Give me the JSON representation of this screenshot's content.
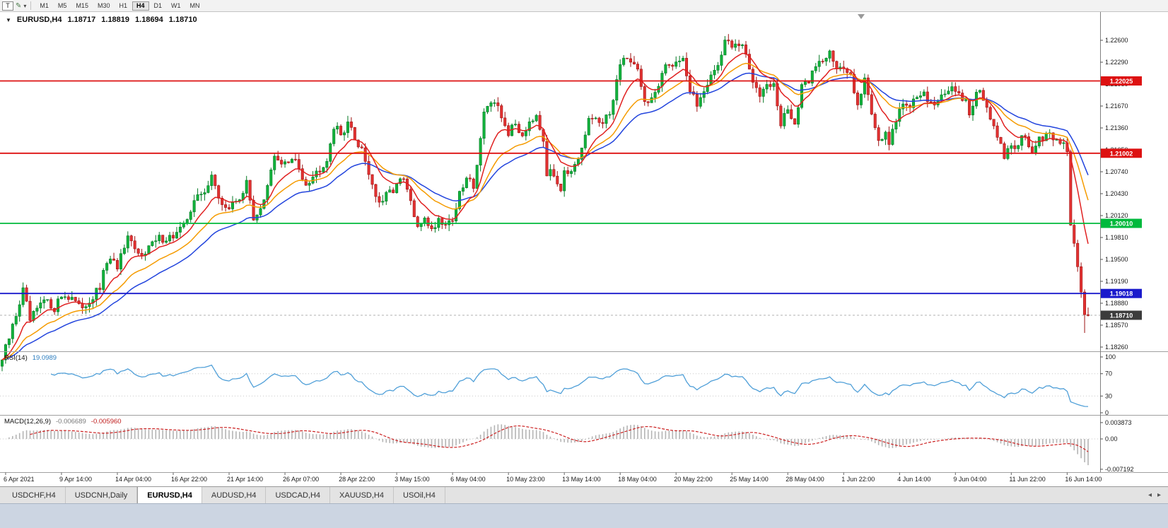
{
  "toolbar": {
    "t_button": "T",
    "pencil_tool": "✎",
    "dropdown_caret": "▾",
    "timeframes": [
      "M1",
      "M5",
      "M15",
      "M30",
      "H1",
      "H4",
      "D1",
      "W1",
      "MN"
    ],
    "active_timeframe": "H4"
  },
  "chart": {
    "dropdown_marker": "▼",
    "symbol_label": "EURUSD,H4",
    "ohlc": {
      "open": "1.18717",
      "high": "1.18819",
      "low": "1.18694",
      "close": "1.18710"
    },
    "price_axis": {
      "ticks": [
        "1.22600",
        "1.22290",
        "1.21980",
        "1.21670",
        "1.21360",
        "1.21050",
        "1.20740",
        "1.20430",
        "1.20120",
        "1.19810",
        "1.19500",
        "1.19190",
        "1.18880",
        "1.18570",
        "1.18260"
      ]
    },
    "hlines": [
      {
        "price": 1.22025,
        "label": "1.22025",
        "color": "#dd1111"
      },
      {
        "price": 1.21002,
        "label": "1.21002",
        "color": "#dd1111"
      },
      {
        "price": 1.2001,
        "label": "1.20010",
        "color": "#00b93c"
      },
      {
        "price": 1.19018,
        "label": "1.19018",
        "color": "#1a1acc"
      }
    ],
    "bid": {
      "price": 1.1871,
      "label": "1.18710",
      "box_color": "#3c3c3c"
    },
    "time_axis": [
      "6 Apr 2021",
      "9 Apr 14:00",
      "14 Apr 04:00",
      "16 Apr 22:00",
      "21 Apr 14:00",
      "26 Apr 07:00",
      "28 Apr 22:00",
      "3 May 15:00",
      "6 May 04:00",
      "10 May 23:00",
      "13 May 14:00",
      "18 May 04:00",
      "20 May 22:00",
      "25 May 14:00",
      "28 May 04:00",
      "1 Jun 22:00",
      "4 Jun 14:00",
      "9 Jun 04:00",
      "11 Jun 22:00",
      "16 Jun 14:00"
    ]
  },
  "indicators": {
    "rsi": {
      "name": "RSI(14)",
      "value": "19.0989",
      "levels": [
        "100",
        "70",
        "30",
        "0"
      ],
      "level_values": [
        100,
        70,
        30,
        0
      ],
      "line_color": "#4f9fd8"
    },
    "macd": {
      "name": "MACD(12,26,9)",
      "value_main": "-0.006689",
      "value_signal": "-0.005960",
      "axis": [
        "0.003873",
        "0.00",
        "-0.007192"
      ],
      "hist_color": "#b4b4b4",
      "signal_color": "#cc2222"
    }
  },
  "tabs": {
    "items": [
      "USDCHF,H4",
      "USDCNH,Daily",
      "EURUSD,H4",
      "AUDUSD,H4",
      "USDCAD,H4",
      "XAUUSD,H4",
      "USOil,H4"
    ],
    "active": "EURUSD,H4",
    "scroll_left": "◂",
    "scroll_right": "▸"
  },
  "chart_data": {
    "type": "candlestick",
    "symbol": "EURUSD",
    "timeframe": "H4",
    "visible_range": {
      "price_min": 1.182,
      "price_max": 1.2297,
      "bars": 312
    },
    "last_candle": {
      "open": 1.18717,
      "high": 1.18819,
      "low": 1.18694,
      "close": 1.1871
    },
    "indicator_values": {
      "rsi": 19.0989,
      "macd": -0.006689,
      "macd_signal": -0.00596
    },
    "levels": [
      1.22025,
      1.21002,
      1.2001,
      1.19018
    ],
    "ma_periods": {
      "fast": 10,
      "medium": 21,
      "slow": 34
    },
    "ma_colors": {
      "fast": "#e02020",
      "medium": "#f59b00",
      "slow": "#2244dd"
    },
    "candle_colors": {
      "bull_fill": "#12b33c",
      "bull_stroke": "#067a26",
      "bear_fill": "#e33232",
      "bear_stroke": "#9e1111"
    },
    "wick_overrides": [
      {
        "bar": 207,
        "high": 1.2266
      },
      {
        "bar": 310,
        "low": 1.1846
      }
    ],
    "waypoints": [
      [
        0,
        1.1808
      ],
      [
        2,
        1.1838
      ],
      [
        4,
        1.1872
      ],
      [
        6,
        1.1906
      ],
      [
        8,
        1.1863
      ],
      [
        10,
        1.1878
      ],
      [
        12,
        1.1891
      ],
      [
        15,
        1.1882
      ],
      [
        17,
        1.1899
      ],
      [
        20,
        1.1897
      ],
      [
        22,
        1.1881
      ],
      [
        25,
        1.1891
      ],
      [
        28,
        1.1909
      ],
      [
        30,
        1.1948
      ],
      [
        33,
        1.1941
      ],
      [
        36,
        1.1977
      ],
      [
        39,
        1.1956
      ],
      [
        42,
        1.1968
      ],
      [
        45,
        1.1979
      ],
      [
        49,
        1.1983
      ],
      [
        52,
        1.1996
      ],
      [
        55,
        1.2035
      ],
      [
        58,
        1.2043
      ],
      [
        60,
        1.2074
      ],
      [
        62,
        1.2032
      ],
      [
        65,
        1.2022
      ],
      [
        68,
        1.2039
      ],
      [
        70,
        1.2056
      ],
      [
        72,
        1.2009
      ],
      [
        75,
        1.2031
      ],
      [
        78,
        1.2094
      ],
      [
        81,
        1.2086
      ],
      [
        84,
        1.2089
      ],
      [
        87,
        1.2059
      ],
      [
        90,
        1.2073
      ],
      [
        93,
        1.2093
      ],
      [
        95,
        1.2139
      ],
      [
        97,
        1.2126
      ],
      [
        99,
        1.2145
      ],
      [
        101,
        1.2119
      ],
      [
        103,
        1.2108
      ],
      [
        106,
        1.2056
      ],
      [
        108,
        1.2026
      ],
      [
        110,
        1.2039
      ],
      [
        113,
        1.2056
      ],
      [
        115,
        1.2062
      ],
      [
        117,
        1.2031
      ],
      [
        119,
        1.1991
      ],
      [
        121,
        1.2012
      ],
      [
        123,
        1.1991
      ],
      [
        125,
        1.2008
      ],
      [
        127,
        1.2001
      ],
      [
        129,
        1.2007
      ],
      [
        131,
        1.2041
      ],
      [
        133,
        1.2064
      ],
      [
        135,
        1.2056
      ],
      [
        137,
        1.2119
      ],
      [
        138,
        1.2164
      ],
      [
        140,
        1.2171
      ],
      [
        142,
        1.2161
      ],
      [
        145,
        1.2129
      ],
      [
        147,
        1.2141
      ],
      [
        149,
        1.2126
      ],
      [
        151,
        1.2147
      ],
      [
        153,
        1.2157
      ],
      [
        155,
        1.2121
      ],
      [
        156,
        1.2073
      ],
      [
        158,
        1.2069
      ],
      [
        160,
        1.2053
      ],
      [
        161,
        1.2079
      ],
      [
        163,
        1.2071
      ],
      [
        165,
        1.2086
      ],
      [
        167,
        1.2124
      ],
      [
        168,
        1.2147
      ],
      [
        170,
        1.2151
      ],
      [
        172,
        1.2139
      ],
      [
        174,
        1.2157
      ],
      [
        176,
        1.2204
      ],
      [
        178,
        1.2239
      ],
      [
        180,
        1.2229
      ],
      [
        182,
        1.2223
      ],
      [
        184,
        1.2171
      ],
      [
        186,
        1.2179
      ],
      [
        188,
        1.2191
      ],
      [
        190,
        1.2224
      ],
      [
        193,
        1.2231
      ],
      [
        195,
        1.2237
      ],
      [
        197,
        1.2186
      ],
      [
        199,
        1.2169
      ],
      [
        201,
        1.2191
      ],
      [
        203,
        1.2211
      ],
      [
        205,
        1.2224
      ],
      [
        207,
        1.2261
      ],
      [
        209,
        1.2249
      ],
      [
        211,
        1.2254
      ],
      [
        213,
        1.2241
      ],
      [
        215,
        1.2197
      ],
      [
        217,
        1.2186
      ],
      [
        219,
        1.2204
      ],
      [
        221,
        1.2196
      ],
      [
        223,
        1.2139
      ],
      [
        225,
        1.2164
      ],
      [
        227,
        1.2141
      ],
      [
        229,
        1.2191
      ],
      [
        231,
        1.2204
      ],
      [
        233,
        1.2226
      ],
      [
        235,
        1.2231
      ],
      [
        237,
        1.2249
      ],
      [
        239,
        1.2219
      ],
      [
        241,
        1.2217
      ],
      [
        243,
        1.2211
      ],
      [
        245,
        1.2173
      ],
      [
        247,
        1.2204
      ],
      [
        249,
        1.2159
      ],
      [
        251,
        1.2121
      ],
      [
        253,
        1.2129
      ],
      [
        254,
        1.2107
      ],
      [
        256,
        1.2149
      ],
      [
        258,
        1.2174
      ],
      [
        260,
        1.2167
      ],
      [
        262,
        1.2177
      ],
      [
        264,
        1.2189
      ],
      [
        266,
        1.2169
      ],
      [
        268,
        1.2174
      ],
      [
        270,
        1.2181
      ],
      [
        272,
        1.2199
      ],
      [
        274,
        1.2183
      ],
      [
        276,
        1.2179
      ],
      [
        277,
        1.2153
      ],
      [
        279,
        1.2189
      ],
      [
        281,
        1.2177
      ],
      [
        283,
        1.2151
      ],
      [
        285,
        1.2119
      ],
      [
        287,
        1.2097
      ],
      [
        289,
        1.2107
      ],
      [
        291,
        1.2117
      ],
      [
        293,
        1.2125
      ],
      [
        295,
        1.2099
      ],
      [
        297,
        1.2117
      ],
      [
        299,
        1.2127
      ],
      [
        301,
        1.2119
      ],
      [
        303,
        1.2113
      ],
      [
        304,
        1.2117
      ],
      [
        305,
        1.2104
      ],
      [
        306,
        1.1999
      ],
      [
        307,
        1.1973
      ],
      [
        308,
        1.1941
      ],
      [
        309,
        1.1903
      ],
      [
        310,
        1.1872
      ],
      [
        311,
        1.1871
      ]
    ]
  }
}
